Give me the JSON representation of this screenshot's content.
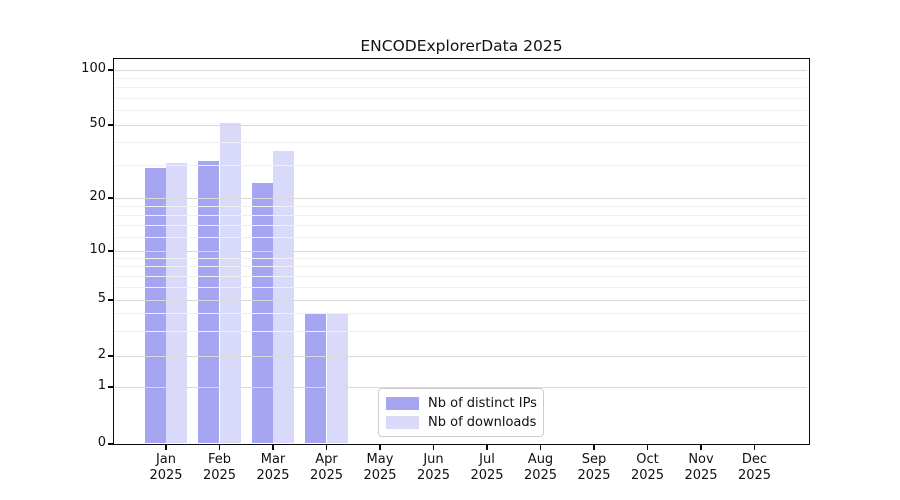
{
  "chart_data": {
    "type": "bar",
    "title": "ENCODExplorerData 2025",
    "categories": [
      "Jan",
      "Feb",
      "Mar",
      "Apr",
      "May",
      "Jun",
      "Jul",
      "Aug",
      "Sep",
      "Oct",
      "Nov",
      "Dec"
    ],
    "category_year": "2025",
    "series": [
      {
        "name": "Nb of distinct IPs",
        "color": "#a5a5f1",
        "values": [
          29,
          32,
          24,
          4,
          0,
          0,
          0,
          0,
          0,
          0,
          0,
          0
        ]
      },
      {
        "name": "Nb of downloads",
        "color": "#d9d9f9",
        "values": [
          31,
          51,
          36,
          4,
          0,
          0,
          0,
          0,
          0,
          0,
          0,
          0
        ]
      }
    ],
    "xlabel": "",
    "ylabel": "",
    "y_axis": {
      "scale": "symlog",
      "ticks": [
        0,
        1,
        2,
        5,
        10,
        20,
        50,
        100
      ],
      "minor_gridlines": [
        90,
        80,
        70,
        60,
        40,
        30,
        18,
        16,
        14,
        12,
        9,
        8,
        7,
        6,
        4,
        3
      ],
      "ylim": [
        0,
        110
      ]
    },
    "grid": "horizontal",
    "legend_position": "lower-center"
  }
}
